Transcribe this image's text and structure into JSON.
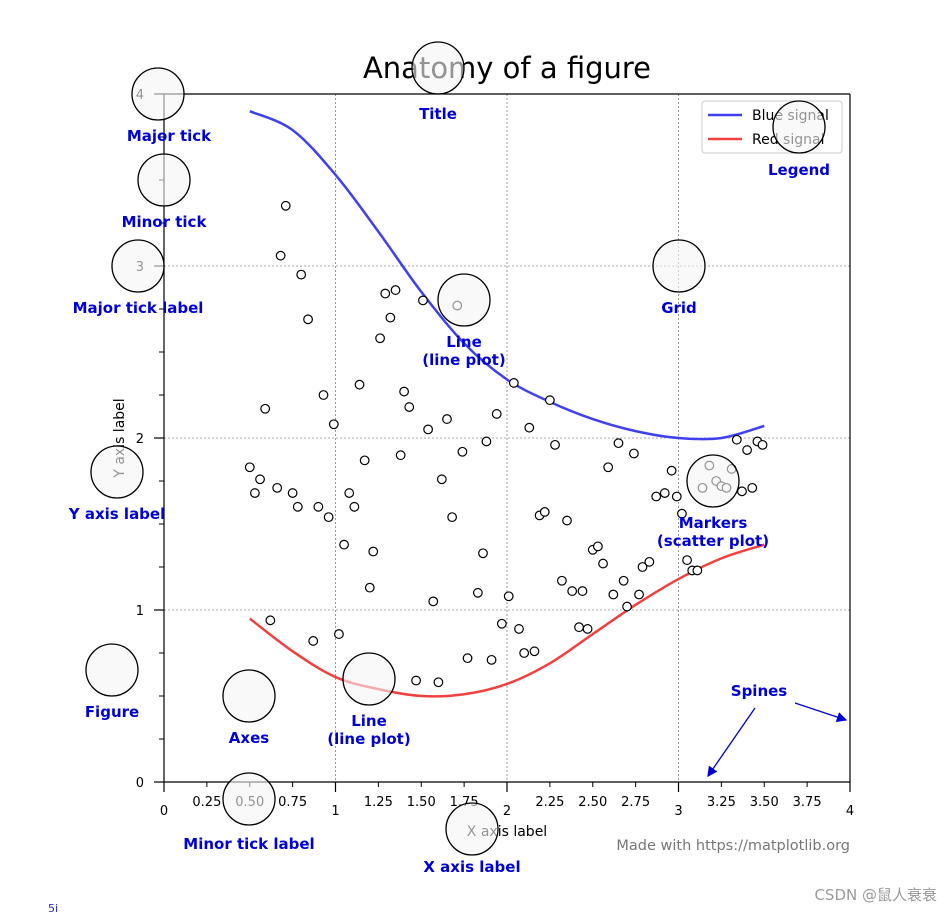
{
  "watermark": "CSDN @鼠人衰衰",
  "corner_mark": "5i",
  "chart_data": {
    "type": "line",
    "title": "Anatomy of a figure",
    "xlabel": "X axis label",
    "ylabel": "Y axis label",
    "xlim": [
      0,
      4
    ],
    "ylim": [
      0,
      4
    ],
    "x_major_ticks": [
      0,
      1,
      2,
      3,
      4
    ],
    "x_minor_tick_labels": [
      "0.25",
      "0.50",
      "0.75",
      "1.25",
      "1.50",
      "1.75",
      "2.25",
      "2.50",
      "2.75",
      "3.25",
      "3.50",
      "3.75"
    ],
    "y_major_ticks": [
      0,
      1,
      2,
      3,
      4
    ],
    "grid": true,
    "legend": {
      "placement": "top-right",
      "entries": [
        "Blue signal",
        "Red signal"
      ]
    },
    "series": [
      {
        "name": "Blue signal",
        "color": "#4040f0",
        "x": [
          0.5,
          0.75,
          1.0,
          1.25,
          1.5,
          1.75,
          2.0,
          2.25,
          2.5,
          2.75,
          3.0,
          3.25,
          3.5
        ],
        "y": [
          3.9,
          3.79,
          3.53,
          3.2,
          2.85,
          2.55,
          2.34,
          2.21,
          2.11,
          2.04,
          2.0,
          2.0,
          2.07
        ]
      },
      {
        "name": "Red signal",
        "color": "#f04040",
        "x": [
          0.5,
          0.75,
          1.0,
          1.25,
          1.5,
          1.75,
          2.0,
          2.25,
          2.5,
          2.75,
          3.0,
          3.25,
          3.5
        ],
        "y": [
          0.95,
          0.76,
          0.61,
          0.54,
          0.5,
          0.51,
          0.57,
          0.69,
          0.86,
          1.03,
          1.18,
          1.3,
          1.38
        ]
      },
      {
        "name": "",
        "kind": "scatter",
        "points": [
          [
            0.5,
            1.83
          ],
          [
            0.53,
            1.68
          ],
          [
            0.56,
            1.76
          ],
          [
            0.59,
            2.17
          ],
          [
            0.62,
            0.94
          ],
          [
            0.66,
            1.71
          ],
          [
            0.68,
            3.06
          ],
          [
            0.71,
            3.35
          ],
          [
            0.75,
            1.68
          ],
          [
            0.78,
            1.6
          ],
          [
            0.8,
            2.95
          ],
          [
            0.84,
            2.69
          ],
          [
            0.87,
            0.82
          ],
          [
            0.9,
            1.6
          ],
          [
            0.93,
            2.25
          ],
          [
            0.96,
            1.54
          ],
          [
            0.99,
            2.08
          ],
          [
            1.02,
            0.86
          ],
          [
            1.05,
            1.38
          ],
          [
            1.08,
            1.68
          ],
          [
            1.11,
            1.6
          ],
          [
            1.14,
            2.31
          ],
          [
            1.17,
            1.87
          ],
          [
            1.2,
            1.13
          ],
          [
            1.22,
            1.34
          ],
          [
            1.26,
            2.58
          ],
          [
            1.29,
            2.84
          ],
          [
            1.32,
            2.7
          ],
          [
            1.35,
            2.86
          ],
          [
            1.38,
            1.9
          ],
          [
            1.4,
            2.27
          ],
          [
            1.43,
            2.18
          ],
          [
            1.47,
            0.59
          ],
          [
            1.51,
            2.8
          ],
          [
            1.54,
            2.05
          ],
          [
            1.57,
            1.05
          ],
          [
            1.6,
            0.58
          ],
          [
            1.62,
            1.76
          ],
          [
            1.65,
            2.11
          ],
          [
            1.68,
            1.54
          ],
          [
            1.71,
            2.77
          ],
          [
            1.74,
            1.92
          ],
          [
            1.77,
            0.72
          ],
          [
            1.83,
            1.1
          ],
          [
            1.86,
            1.33
          ],
          [
            1.88,
            1.98
          ],
          [
            1.91,
            0.71
          ],
          [
            1.94,
            2.14
          ],
          [
            1.97,
            0.92
          ],
          [
            2.01,
            1.08
          ],
          [
            2.04,
            2.32
          ],
          [
            2.07,
            0.89
          ],
          [
            2.1,
            0.75
          ],
          [
            2.13,
            2.06
          ],
          [
            2.16,
            0.76
          ],
          [
            2.19,
            1.55
          ],
          [
            2.22,
            1.57
          ],
          [
            2.25,
            2.22
          ],
          [
            2.28,
            1.96
          ],
          [
            2.32,
            1.17
          ],
          [
            2.35,
            1.52
          ],
          [
            2.38,
            1.11
          ],
          [
            2.42,
            0.9
          ],
          [
            2.44,
            1.11
          ],
          [
            2.47,
            0.89
          ],
          [
            2.5,
            1.35
          ],
          [
            2.53,
            1.37
          ],
          [
            2.56,
            1.27
          ],
          [
            2.59,
            1.83
          ],
          [
            2.62,
            1.09
          ],
          [
            2.65,
            1.97
          ],
          [
            2.68,
            1.17
          ],
          [
            2.7,
            1.02
          ],
          [
            2.74,
            1.91
          ],
          [
            2.77,
            1.09
          ],
          [
            2.79,
            1.25
          ],
          [
            2.83,
            1.28
          ],
          [
            2.87,
            1.66
          ],
          [
            2.92,
            1.68
          ],
          [
            2.96,
            1.81
          ],
          [
            2.99,
            1.66
          ],
          [
            3.02,
            1.56
          ],
          [
            3.05,
            1.29
          ],
          [
            3.08,
            1.23
          ],
          [
            3.11,
            1.23
          ],
          [
            3.14,
            1.71
          ],
          [
            3.18,
            1.84
          ],
          [
            3.22,
            1.75
          ],
          [
            3.25,
            1.72
          ],
          [
            3.28,
            1.71
          ],
          [
            3.31,
            1.82
          ],
          [
            3.34,
            1.99
          ],
          [
            3.37,
            1.69
          ],
          [
            3.4,
            1.93
          ],
          [
            3.43,
            1.71
          ],
          [
            3.46,
            1.98
          ],
          [
            3.49,
            1.96
          ]
        ]
      }
    ],
    "annotations": [
      {
        "label": "Title",
        "lines": [
          "Title"
        ]
      },
      {
        "label": "Major tick",
        "lines": [
          "Major tick"
        ]
      },
      {
        "label": "Minor tick",
        "lines": [
          "Minor tick"
        ]
      },
      {
        "label": "Major tick label",
        "lines": [
          "Major tick label"
        ]
      },
      {
        "label": "Legend",
        "lines": [
          "Legend"
        ]
      },
      {
        "label": "Grid",
        "lines": [
          "Grid"
        ]
      },
      {
        "label": "Line (line plot) blue",
        "lines": [
          "Line",
          "(line plot)"
        ]
      },
      {
        "label": "Y axis label",
        "lines": [
          "Y axis label"
        ]
      },
      {
        "label": "Markers",
        "lines": [
          "Markers",
          "(scatter plot)"
        ]
      },
      {
        "label": "Figure",
        "lines": [
          "Figure"
        ]
      },
      {
        "label": "Axes",
        "lines": [
          "Axes"
        ]
      },
      {
        "label": "Line (line plot) red",
        "lines": [
          "Line",
          "(line plot)"
        ]
      },
      {
        "label": "Spines",
        "lines": [
          "Spines"
        ]
      },
      {
        "label": "Minor tick label",
        "lines": [
          "Minor tick label"
        ]
      },
      {
        "label": "X axis label",
        "lines": [
          "X axis label"
        ]
      }
    ],
    "credit": "Made with https://matplotlib.org"
  }
}
